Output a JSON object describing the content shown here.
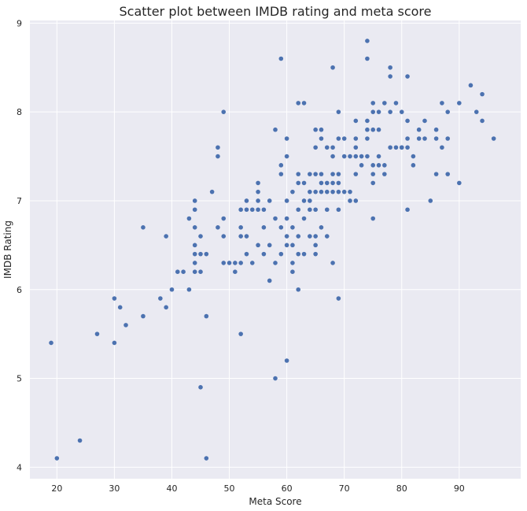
{
  "chart_data": {
    "type": "scatter",
    "title": "Scatter plot between IMDB rating and meta score",
    "xlabel": "Meta Score",
    "ylabel": "IMDB Rating",
    "xlim": [
      15.3,
      100.7
    ],
    "ylim": [
      3.87,
      9.03
    ],
    "xticks": [
      20,
      30,
      40,
      50,
      60,
      70,
      80,
      90
    ],
    "yticks": [
      4,
      5,
      6,
      7,
      8,
      9
    ],
    "grid": true,
    "colors": {
      "background": "#eaeaf2",
      "grid": "#ffffff",
      "marker": "#4c72b0"
    },
    "x": [
      19,
      20,
      24,
      27,
      30,
      30,
      31,
      32,
      35,
      35,
      38,
      39,
      39,
      40,
      41,
      42,
      43,
      43,
      44,
      44,
      44,
      44,
      44,
      44,
      44,
      45,
      45,
      45,
      45,
      46,
      46,
      46,
      47,
      48,
      48,
      48,
      49,
      49,
      49,
      49,
      50,
      51,
      51,
      52,
      52,
      52,
      52,
      52,
      53,
      53,
      53,
      53,
      54,
      54,
      55,
      55,
      55,
      55,
      55,
      56,
      56,
      56,
      57,
      57,
      57,
      58,
      58,
      58,
      58,
      59,
      59,
      59,
      59,
      59,
      60,
      60,
      60,
      60,
      60,
      60,
      60,
      61,
      61,
      61,
      61,
      61,
      62,
      62,
      62,
      62,
      62,
      62,
      62,
      63,
      63,
      63,
      63,
      63,
      64,
      64,
      64,
      64,
      64,
      65,
      65,
      65,
      65,
      65,
      65,
      65,
      65,
      66,
      66,
      66,
      66,
      66,
      66,
      67,
      67,
      67,
      67,
      67,
      68,
      68,
      68,
      68,
      68,
      68,
      68,
      69,
      69,
      69,
      69,
      69,
      69,
      69,
      70,
      70,
      70,
      71,
      71,
      71,
      72,
      72,
      72,
      72,
      72,
      72,
      73,
      73,
      74,
      74,
      74,
      74,
      74,
      74,
      75,
      75,
      75,
      75,
      75,
      75,
      75,
      76,
      76,
      76,
      76,
      77,
      77,
      77,
      78,
      78,
      78,
      78,
      79,
      79,
      80,
      80,
      80,
      81,
      81,
      81,
      81,
      81,
      82,
      82,
      83,
      83,
      84,
      84,
      85,
      86,
      86,
      86,
      87,
      87,
      88,
      88,
      88,
      90,
      90,
      92,
      93,
      94,
      94,
      96
    ],
    "y": [
      5.4,
      4.1,
      4.3,
      5.5,
      5.4,
      5.9,
      5.8,
      5.6,
      5.7,
      6.7,
      5.9,
      5.8,
      6.6,
      6.0,
      6.2,
      6.2,
      6.0,
      6.8,
      6.3,
      6.4,
      6.5,
      6.7,
      6.9,
      7.0,
      6.2,
      6.4,
      6.6,
      4.9,
      6.2,
      6.4,
      5.7,
      4.1,
      7.1,
      6.7,
      7.5,
      7.6,
      6.3,
      6.6,
      6.8,
      8.0,
      6.3,
      6.2,
      6.3,
      5.5,
      6.3,
      6.6,
      6.7,
      6.9,
      6.4,
      6.6,
      6.9,
      7.0,
      6.3,
      6.9,
      6.5,
      6.9,
      7.0,
      7.1,
      7.2,
      6.4,
      6.7,
      6.9,
      6.1,
      6.5,
      7.0,
      5.0,
      6.3,
      6.8,
      7.8,
      6.4,
      6.7,
      7.3,
      7.4,
      8.6,
      5.2,
      6.5,
      6.6,
      6.8,
      7.0,
      7.5,
      7.7,
      6.2,
      6.3,
      6.5,
      6.7,
      7.1,
      6.0,
      6.4,
      6.6,
      6.9,
      7.2,
      7.3,
      8.1,
      6.4,
      6.8,
      7.0,
      7.2,
      8.1,
      6.6,
      6.9,
      7.0,
      7.1,
      7.3,
      6.4,
      6.5,
      6.6,
      6.9,
      7.1,
      7.3,
      7.6,
      7.8,
      6.7,
      7.1,
      7.2,
      7.3,
      7.7,
      7.8,
      6.6,
      6.9,
      7.1,
      7.2,
      7.6,
      6.3,
      7.1,
      7.2,
      7.3,
      7.5,
      7.6,
      8.5,
      5.9,
      6.9,
      7.1,
      7.2,
      7.3,
      7.7,
      8.0,
      7.1,
      7.5,
      7.7,
      7.0,
      7.1,
      7.5,
      7.0,
      7.3,
      7.5,
      7.6,
      7.7,
      7.9,
      7.4,
      7.5,
      7.5,
      7.7,
      7.8,
      7.9,
      8.6,
      8.8,
      6.8,
      7.2,
      7.3,
      7.4,
      7.8,
      8.0,
      8.1,
      7.4,
      7.5,
      7.8,
      8.0,
      7.3,
      7.4,
      8.1,
      8.0,
      8.4,
      8.5,
      7.6,
      7.6,
      8.1,
      7.6,
      8.0,
      7.6,
      6.9,
      7.6,
      7.7,
      7.9,
      8.4,
      7.4,
      7.5,
      7.7,
      7.8,
      7.7,
      7.9,
      7.0,
      7.3,
      7.7,
      7.8,
      7.6,
      8.1,
      7.3,
      7.7,
      8.0,
      7.2,
      8.1,
      8.3,
      8.0,
      7.9,
      8.2,
      7.7
    ]
  }
}
